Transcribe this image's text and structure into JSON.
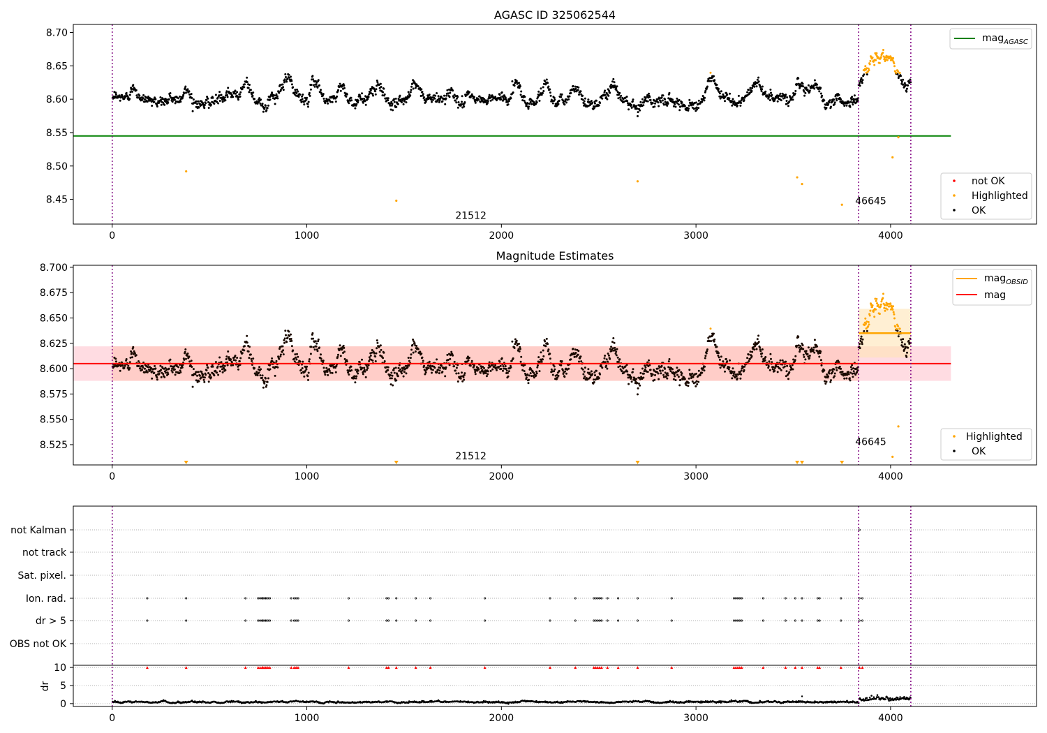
{
  "colors": {
    "ok": "#000000",
    "highlighted": "#ffa500",
    "not_ok": "#ff0000",
    "agasc_line": "#008000",
    "mag_line": "#ff0000",
    "obsid_line": "#ffa500",
    "obsid_boundary": "#800080",
    "band_mag": "#ffc0cb",
    "band_obsid": "#ffe4b5",
    "grid": "#b0b0b0"
  },
  "chart_data": [
    {
      "type": "scatter",
      "title": "AGASC ID 325062544",
      "xlabel": "",
      "ylabel": "",
      "xlim": [
        -200,
        4750
      ],
      "ylim": [
        8.413,
        8.712
      ],
      "xticks": [
        0,
        1000,
        2000,
        3000,
        4000
      ],
      "yticks": [
        8.45,
        8.5,
        8.55,
        8.6,
        8.65,
        8.7
      ],
      "ytick_labels": [
        "8.45",
        "8.50",
        "8.55",
        "8.60",
        "8.65",
        "8.70"
      ],
      "obsid_boundaries": [
        0,
        3836,
        4104
      ],
      "obsid_labels": [
        {
          "text": "21512",
          "x": 1915,
          "y": 8.426
        },
        {
          "text": "46645",
          "x": 3970,
          "y": 8.448
        }
      ],
      "mag_agasc": {
        "value": 8.545,
        "x_end": 4310
      },
      "highlighted_outliers": [
        {
          "x": 380,
          "y": 8.492
        },
        {
          "x": 1460,
          "y": 8.448
        },
        {
          "x": 2700,
          "y": 8.477
        },
        {
          "x": 3520,
          "y": 8.483
        },
        {
          "x": 3545,
          "y": 8.473
        },
        {
          "x": 3750,
          "y": 8.442
        },
        {
          "x": 4010,
          "y": 8.513
        },
        {
          "x": 4040,
          "y": 8.543
        }
      ],
      "legend_top": [
        {
          "label": "mag",
          "sub": "AGASC",
          "kind": "line",
          "color": "#008000"
        }
      ],
      "legend_bottom": [
        {
          "label": "not OK",
          "kind": "dot",
          "color": "#ff0000"
        },
        {
          "label": "Highlighted",
          "kind": "dot",
          "color": "#ffa500"
        },
        {
          "label": "OK",
          "kind": "dot",
          "color": "#000000"
        }
      ]
    },
    {
      "type": "scatter",
      "title": "Magnitude Estimates",
      "xlabel": "",
      "ylabel": "",
      "xlim": [
        -200,
        4750
      ],
      "ylim": [
        8.505,
        8.702
      ],
      "xticks": [
        0,
        1000,
        2000,
        3000,
        4000
      ],
      "yticks": [
        8.525,
        8.55,
        8.575,
        8.6,
        8.625,
        8.65,
        8.675,
        8.7
      ],
      "ytick_labels": [
        "8.525",
        "8.550",
        "8.575",
        "8.600",
        "8.625",
        "8.650",
        "8.675",
        "8.700"
      ],
      "obsid_boundaries": [
        0,
        3836,
        4104
      ],
      "obsid_labels": [
        {
          "text": "21512",
          "x": 1915,
          "y": 8.514
        },
        {
          "text": "46645",
          "x": 3970,
          "y": 8.528
        }
      ],
      "mag": {
        "value": 8.605,
        "band": [
          8.588,
          8.622
        ],
        "x_end": 4310
      },
      "mag_obsid": [
        {
          "x0": 3836,
          "x1": 4104,
          "value": 8.635,
          "band": [
            8.611,
            8.659
          ]
        }
      ],
      "below_range_markers": [
        380,
        1460,
        2700,
        3520,
        3545,
        3750
      ],
      "highlighted_outliers": [
        {
          "x": 4010,
          "y": 8.513
        },
        {
          "x": 4040,
          "y": 8.543
        }
      ],
      "legend_top": [
        {
          "label": "mag",
          "sub": "OBSID",
          "kind": "line",
          "color": "#ffa500"
        },
        {
          "label": "mag",
          "sub": "",
          "kind": "line",
          "color": "#ff0000"
        }
      ],
      "legend_bottom": [
        {
          "label": "Highlighted",
          "kind": "dot",
          "color": "#ffa500"
        },
        {
          "label": "OK",
          "kind": "dot",
          "color": "#000000"
        }
      ]
    },
    {
      "type": "scatter",
      "title": "",
      "xlabel": "",
      "ylabel": "",
      "xlim": [
        -200,
        4750
      ],
      "xticks": [
        0,
        1000,
        2000,
        3000,
        4000
      ],
      "obsid_boundaries": [
        0,
        3836,
        4104
      ],
      "flag_rows": [
        "not Kalman",
        "not track",
        "Sat. pixel.",
        "Ion. rad.",
        "dr > 5",
        "OBS not OK"
      ],
      "flag_events_x": [
        180,
        380,
        685,
        750,
        760,
        770,
        775,
        785,
        790,
        800,
        810,
        920,
        935,
        945,
        955,
        1215,
        1410,
        1420,
        1460,
        1560,
        1635,
        1915,
        2250,
        2380,
        2475,
        2485,
        2495,
        2505,
        2515,
        2545,
        2600,
        2700,
        2875,
        3195,
        3205,
        3215,
        3225,
        3235,
        3345,
        3460,
        3510,
        3545,
        3625,
        3635,
        3745,
        3840,
        3855
      ],
      "not_kalman_events_x": [
        3840
      ],
      "dr_events_x": [
        180,
        380,
        685,
        750,
        760,
        770,
        775,
        785,
        790,
        800,
        810,
        920,
        935,
        945,
        955,
        1215,
        1410,
        1420,
        1460,
        1560,
        1635,
        1915,
        2250,
        2380,
        2475,
        2485,
        2495,
        2505,
        2515,
        2545,
        2600,
        2700,
        2875,
        3195,
        3205,
        3215,
        3225,
        3235,
        3345,
        3460,
        3510,
        3545,
        3625,
        3635,
        3745,
        3840,
        3855
      ],
      "dr_outlier": {
        "x": 3545,
        "y": 2
      },
      "dr_ylabel": "dr",
      "dr_yticks": [
        0,
        5,
        10
      ],
      "dr_ytick_labels": [
        "0",
        "5",
        "10"
      ],
      "dr_ylim": [
        -0.8,
        10.6
      ],
      "dr_clip": 10
    }
  ]
}
